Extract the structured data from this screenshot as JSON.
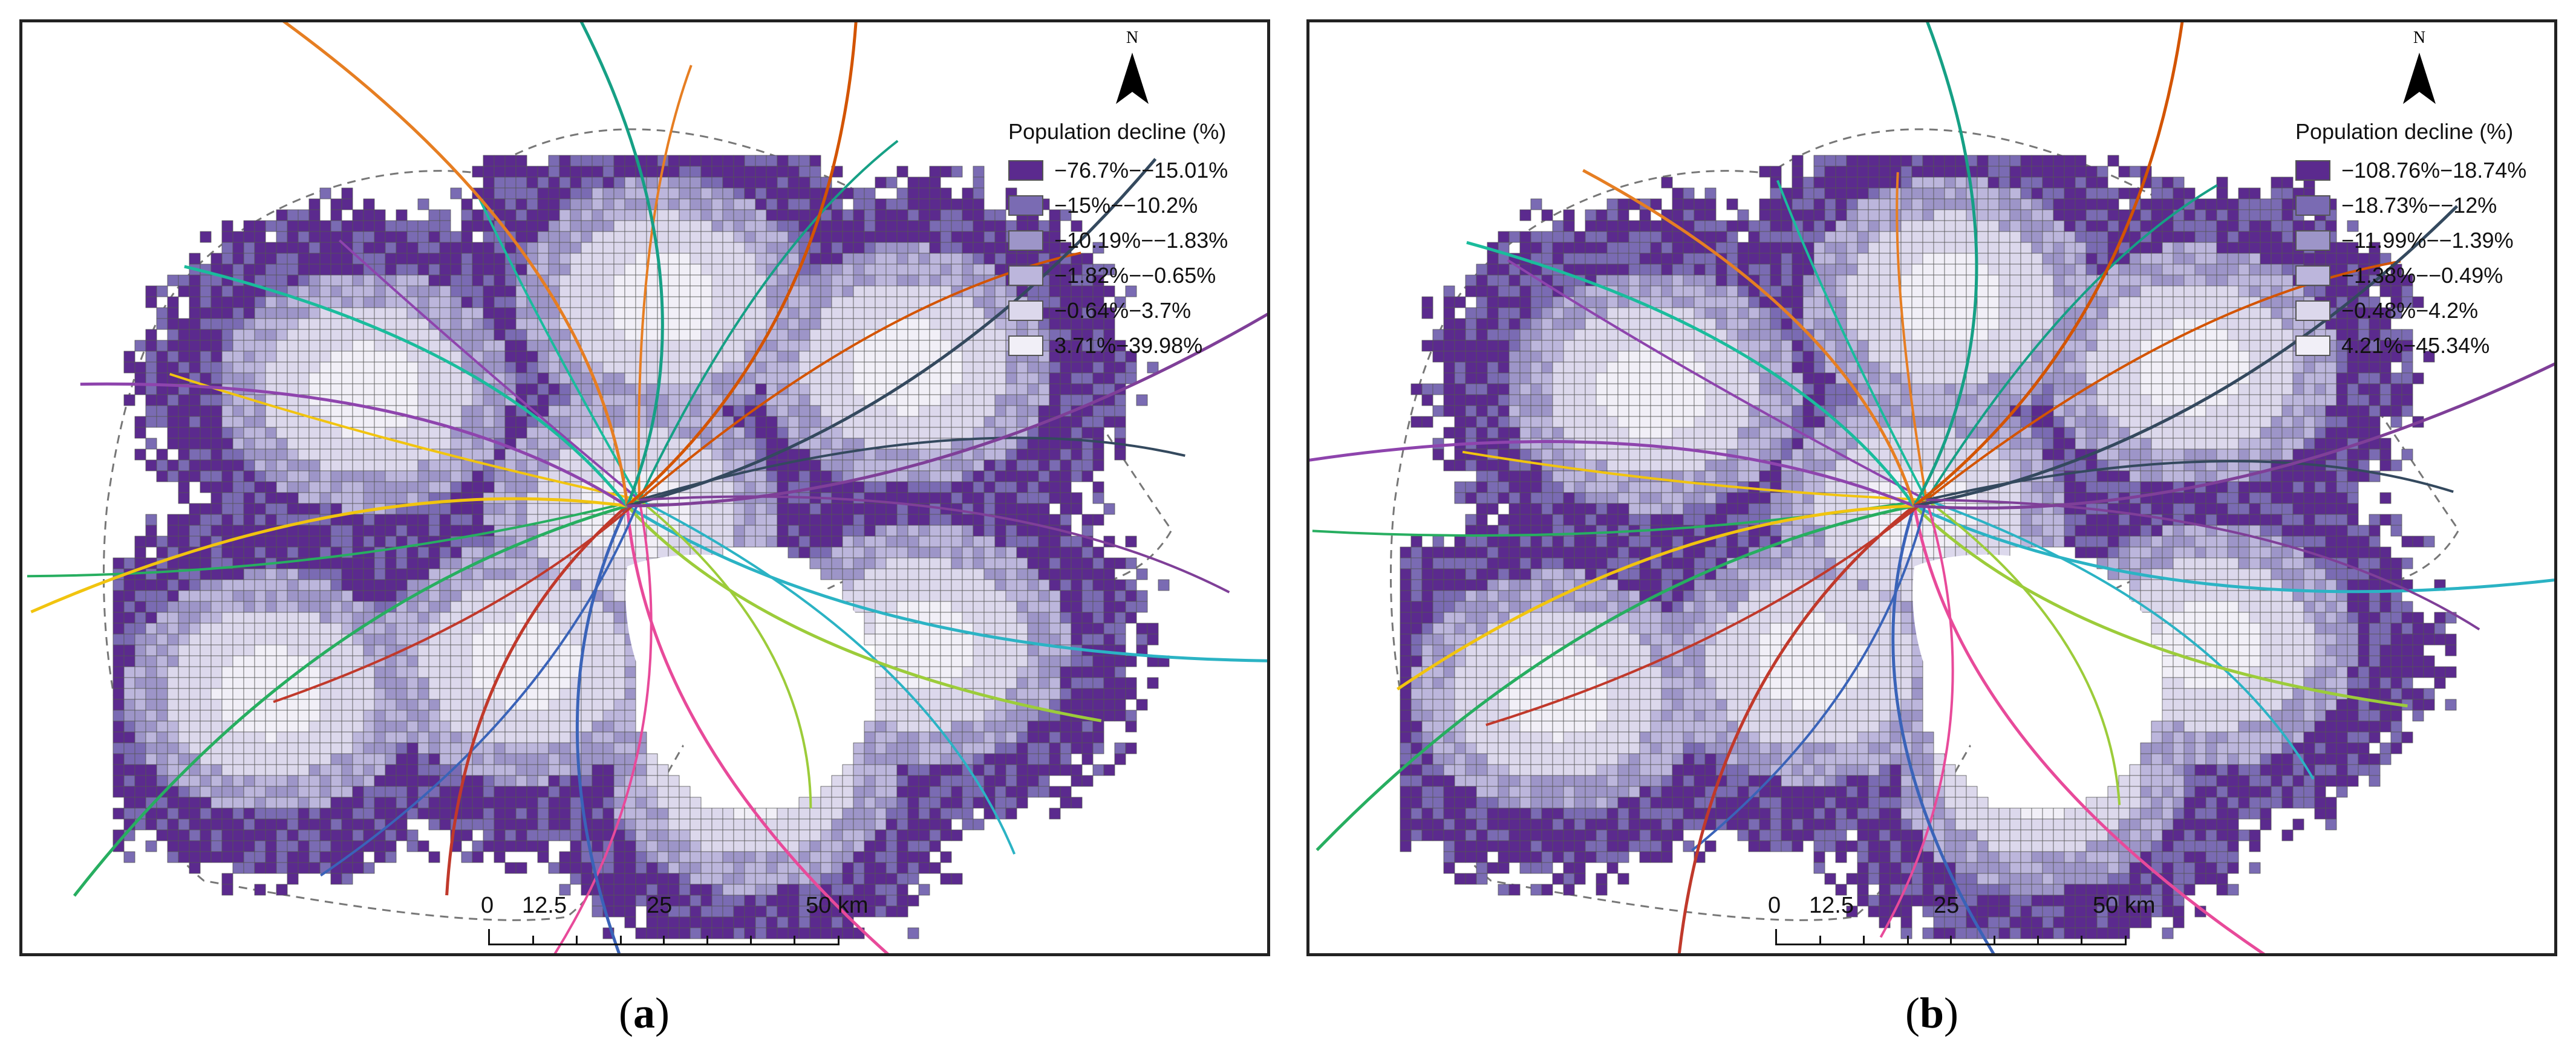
{
  "panels": [
    {
      "id": "a",
      "caption_letter": "a",
      "legend_title": "Population decline (%)",
      "classes": [
        {
          "label": "−76.7%−−15.01%",
          "color": "#5b2a8e"
        },
        {
          "label": "−15%−−10.2%",
          "color": "#7a6bb3"
        },
        {
          "label": "−10.19%−−1.83%",
          "color": "#9d95c8"
        },
        {
          "label": "−1.82%−−0.65%",
          "color": "#bcb6dc"
        },
        {
          "label": "−0.64%−3.7%",
          "color": "#dcd8ec"
        },
        {
          "label": "3.71%−39.98%",
          "color": "#f1eff7"
        }
      ]
    },
    {
      "id": "b",
      "caption_letter": "b",
      "legend_title": "Population decline (%)",
      "classes": [
        {
          "label": "−108.76%−18.74%",
          "color": "#5b2a8e"
        },
        {
          "label": "−18.73%−−12%",
          "color": "#7a6bb3"
        },
        {
          "label": "−11.99%−−1.39%",
          "color": "#9d95c8"
        },
        {
          "label": "−1.38%−−0.49%",
          "color": "#bcb6dc"
        },
        {
          "label": "−0.48%−4.2%",
          "color": "#dcd8ec"
        },
        {
          "label": "4.21%−45.34%",
          "color": "#f1eff7"
        }
      ]
    }
  ],
  "north_arrow": {
    "letter": "N"
  },
  "scale_bar": {
    "labels": [
      "0",
      "12.5",
      "25",
      "50 km"
    ]
  },
  "rail_colors": [
    "#2bb3c4",
    "#9ccc3a",
    "#e84a9a",
    "#3a63b8",
    "#c0392b",
    "#27ae60",
    "#f1c40f",
    "#8e44ad",
    "#1abc9c",
    "#e67e22",
    "#16a085",
    "#d35400",
    "#34495e",
    "#7f3f98"
  ]
}
